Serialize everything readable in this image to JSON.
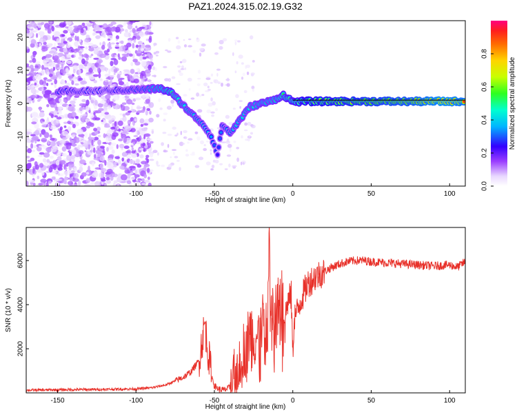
{
  "title": "PAZ1.2024.315.02.19.G32",
  "colors": {
    "snr_line": "#e8312a",
    "frame": "#000000",
    "guide_line": "#000000"
  },
  "chart_data": [
    {
      "type": "heatmap",
      "title": "PAZ1.2024.315.02.19.G32",
      "xlabel": "Height of straight line (km)",
      "ylabel": "Frequency (Hz)",
      "xlim": [
        -170,
        110
      ],
      "ylim": [
        -25,
        25
      ],
      "x_ticks": [
        -150,
        -100,
        -50,
        0,
        50,
        100
      ],
      "y_ticks": [
        -20,
        -10,
        0,
        10,
        20
      ],
      "grid": false,
      "colorbar": {
        "label": "Normalized spectral amplitude",
        "range": [
          0,
          1
        ],
        "ticks": [
          "0.0",
          "0.2",
          "0.4",
          "0.6",
          "0.8"
        ],
        "colormap": "rainbow (white/violet → magenta)"
      },
      "ridge": [
        {
          "x": -150,
          "y": 3.5,
          "amp": 0.35
        },
        {
          "x": -120,
          "y": 3.8,
          "amp": 0.3
        },
        {
          "x": -95,
          "y": 4.2,
          "amp": 0.4
        },
        {
          "x": -85,
          "y": 4.5,
          "amp": 0.5
        },
        {
          "x": -78,
          "y": 3.5,
          "amp": 0.55
        },
        {
          "x": -72,
          "y": 0.5,
          "amp": 0.45
        },
        {
          "x": -65,
          "y": -3.0,
          "amp": 0.45
        },
        {
          "x": -58,
          "y": -6.0,
          "amp": 0.4
        },
        {
          "x": -52,
          "y": -10.0,
          "amp": 0.35
        },
        {
          "x": -48,
          "y": -15.5,
          "amp": 0.25
        },
        {
          "x": -45,
          "y": -6.5,
          "amp": 0.35
        },
        {
          "x": -40,
          "y": -9.0,
          "amp": 0.4
        },
        {
          "x": -33,
          "y": -4.5,
          "amp": 0.45
        },
        {
          "x": -27,
          "y": -1.0,
          "amp": 0.45
        },
        {
          "x": -20,
          "y": 0.0,
          "amp": 0.5
        },
        {
          "x": -13,
          "y": 0.8,
          "amp": 0.5
        },
        {
          "x": -6,
          "y": 2.5,
          "amp": 0.55
        },
        {
          "x": 0,
          "y": 0.5,
          "amp": 0.6
        },
        {
          "x": 10,
          "y": 0.6,
          "amp": 0.7
        },
        {
          "x": 30,
          "y": 0.6,
          "amp": 0.75
        },
        {
          "x": 50,
          "y": 0.6,
          "amp": 0.8
        },
        {
          "x": 75,
          "y": 0.6,
          "amp": 0.85
        },
        {
          "x": 95,
          "y": 0.6,
          "amp": 0.95
        },
        {
          "x": 110,
          "y": 0.6,
          "amp": 0.9
        }
      ]
    },
    {
      "type": "line",
      "xlabel": "Height of straight line (km)",
      "ylabel": "SNR (10 * v/v)",
      "xlim": [
        -170,
        110
      ],
      "ylim": [
        0,
        7500
      ],
      "x_ticks": [
        -150,
        -100,
        -50,
        0,
        50,
        100
      ],
      "y_ticks": [
        2000,
        4000,
        6000
      ],
      "grid": false,
      "series": [
        {
          "x": [
            -170,
            -150,
            -120,
            -100,
            -90,
            -80,
            -70,
            -65,
            -60,
            -57,
            -56,
            -55,
            -52,
            -50,
            -47,
            -44,
            -40,
            -37,
            -35,
            -30,
            -27,
            -25,
            -22,
            -20,
            -18,
            -16,
            -15,
            -14,
            -12,
            -10,
            -8,
            -6,
            -5,
            -3,
            -1,
            0,
            1,
            3,
            5,
            8,
            10,
            15,
            20,
            25,
            30,
            35,
            40,
            45,
            50,
            60,
            70,
            80,
            90,
            100,
            105,
            110
          ],
          "values": [
            120,
            140,
            160,
            180,
            230,
            380,
            700,
            950,
            1450,
            2700,
            3200,
            2400,
            850,
            320,
            160,
            130,
            240,
            650,
            1350,
            2200,
            2800,
            2500,
            2600,
            3000,
            3300,
            3600,
            7400,
            3700,
            3500,
            3800,
            4300,
            4500,
            3400,
            4200,
            4400,
            1800,
            3500,
            3700,
            4200,
            4700,
            5000,
            5300,
            5500,
            5700,
            5850,
            5950,
            6000,
            6000,
            5950,
            5900,
            5850,
            5800,
            5750,
            5800,
            5700,
            5950
          ]
        }
      ]
    }
  ]
}
